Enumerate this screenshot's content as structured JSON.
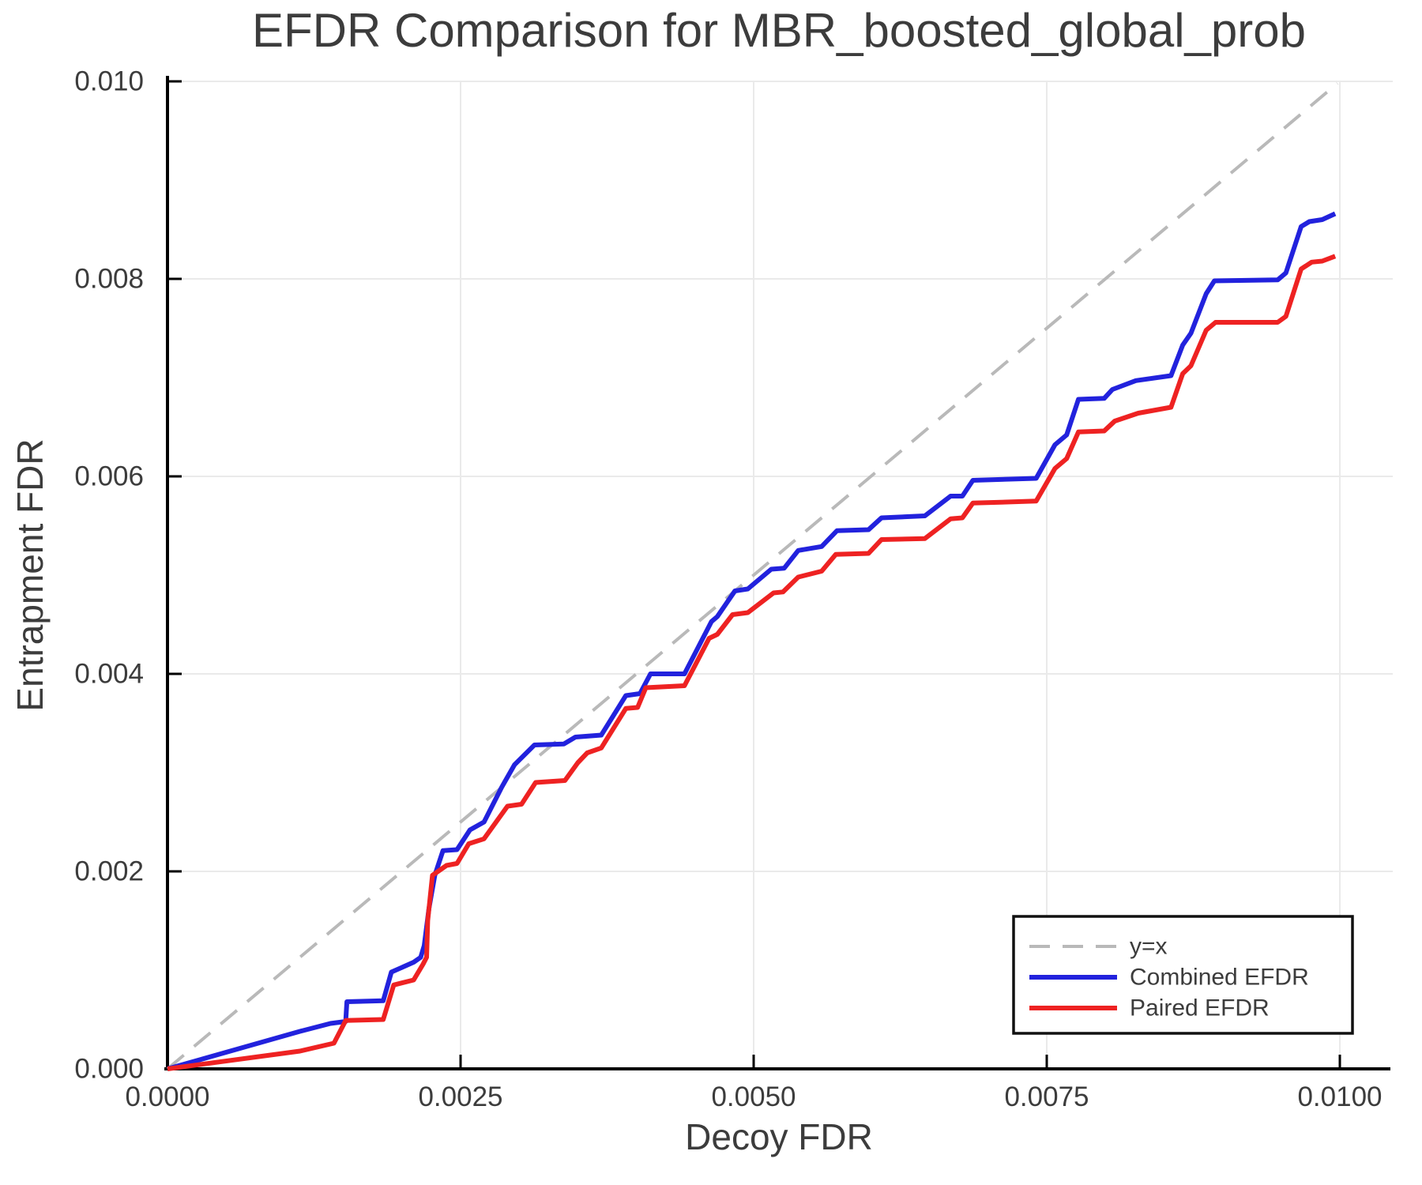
{
  "figure": {
    "title": "EFDR Comparison for MBR_boosted_global_prob",
    "xlabel": "Decoy FDR",
    "ylabel": "Entrapment FDR"
  },
  "colors": {
    "text": "#3c3c3c",
    "grid": "#eaeaea",
    "spine": "#000000",
    "legend_border": "#111111",
    "background": "#ffffff",
    "identity_line": "#b9b9b9",
    "combined_line": "#2222dd",
    "paired_line": "#ee2222"
  },
  "legend": {
    "position": "lower right"
  },
  "chart_data": {
    "type": "line",
    "title": "EFDR Comparison for MBR_boosted_global_prob",
    "xlabel": "Decoy FDR",
    "ylabel": "Entrapment FDR",
    "xlim": [
      0.0,
      0.01
    ],
    "ylim": [
      0.0,
      0.01
    ],
    "grid": true,
    "legend_position": "lower right",
    "x_ticks": {
      "values": [
        0.0,
        0.0025,
        0.005,
        0.0075,
        0.01
      ],
      "labels": [
        "0.0000",
        "0.0025",
        "0.0050",
        "0.0075",
        "0.0100"
      ]
    },
    "y_ticks": {
      "values": [
        0.0,
        0.002,
        0.004,
        0.006,
        0.008,
        0.01
      ],
      "labels": [
        "0.000",
        "0.002",
        "0.004",
        "0.006",
        "0.008",
        "0.010"
      ]
    },
    "series": [
      {
        "name": "y=x",
        "color": "#b9b9b9",
        "dashed": true,
        "width": 4,
        "points": [
          [
            0.0,
            0.0
          ],
          [
            0.00998,
            0.00998
          ]
        ]
      },
      {
        "name": "Combined EFDR",
        "color": "#2222dd",
        "dashed": false,
        "width": 6,
        "points": [
          [
            0.0,
            0.0
          ],
          [
            0.00113,
            0.00038
          ],
          [
            0.00139,
            0.00046
          ],
          [
            0.00152,
            0.00048
          ],
          [
            0.00153,
            0.00068
          ],
          [
            0.00184,
            0.00069
          ],
          [
            0.00191,
            0.00098
          ],
          [
            0.0021,
            0.00108
          ],
          [
            0.00216,
            0.00113
          ],
          [
            0.00219,
            0.00125
          ],
          [
            0.00223,
            0.00162
          ],
          [
            0.00228,
            0.00196
          ],
          [
            0.00235,
            0.00221
          ],
          [
            0.00247,
            0.00222
          ],
          [
            0.00258,
            0.00242
          ],
          [
            0.0027,
            0.0025
          ],
          [
            0.00285,
            0.00285
          ],
          [
            0.00296,
            0.00308
          ],
          [
            0.00313,
            0.00328
          ],
          [
            0.00338,
            0.00329
          ],
          [
            0.00348,
            0.00336
          ],
          [
            0.0037,
            0.00338
          ],
          [
            0.00391,
            0.00378
          ],
          [
            0.00403,
            0.0038
          ],
          [
            0.00412,
            0.004
          ],
          [
            0.00441,
            0.004
          ],
          [
            0.00464,
            0.00453
          ],
          [
            0.00469,
            0.00458
          ],
          [
            0.00484,
            0.00484
          ],
          [
            0.00495,
            0.00486
          ],
          [
            0.00515,
            0.00506
          ],
          [
            0.00526,
            0.00507
          ],
          [
            0.00538,
            0.00525
          ],
          [
            0.00558,
            0.00529
          ],
          [
            0.00571,
            0.00545
          ],
          [
            0.00598,
            0.00546
          ],
          [
            0.00609,
            0.00558
          ],
          [
            0.00646,
            0.0056
          ],
          [
            0.00668,
            0.0058
          ],
          [
            0.00678,
            0.0058
          ],
          [
            0.00687,
            0.00596
          ],
          [
            0.00741,
            0.00598
          ],
          [
            0.00757,
            0.00632
          ],
          [
            0.00767,
            0.00642
          ],
          [
            0.00777,
            0.00678
          ],
          [
            0.00799,
            0.00679
          ],
          [
            0.00806,
            0.00688
          ],
          [
            0.00826,
            0.00697
          ],
          [
            0.00856,
            0.00702
          ],
          [
            0.00866,
            0.00733
          ],
          [
            0.00873,
            0.00745
          ],
          [
            0.00886,
            0.00785
          ],
          [
            0.00893,
            0.00798
          ],
          [
            0.00947,
            0.00799
          ],
          [
            0.00954,
            0.00806
          ],
          [
            0.00967,
            0.00853
          ],
          [
            0.00974,
            0.00858
          ],
          [
            0.00985,
            0.0086
          ],
          [
            0.00996,
            0.00866
          ]
        ]
      },
      {
        "name": "Paired EFDR",
        "color": "#ee2222",
        "dashed": false,
        "width": 6,
        "points": [
          [
            0.0,
            0.0
          ],
          [
            0.00113,
            0.00018
          ],
          [
            0.00142,
            0.00026
          ],
          [
            0.00152,
            0.00049
          ],
          [
            0.00184,
            0.0005
          ],
          [
            0.00193,
            0.00085
          ],
          [
            0.0021,
            0.0009
          ],
          [
            0.00218,
            0.00106
          ],
          [
            0.00221,
            0.00113
          ],
          [
            0.00222,
            0.0015
          ],
          [
            0.00226,
            0.00196
          ],
          [
            0.00238,
            0.00206
          ],
          [
            0.00247,
            0.00208
          ],
          [
            0.00257,
            0.00228
          ],
          [
            0.0027,
            0.00233
          ],
          [
            0.0029,
            0.00266
          ],
          [
            0.00302,
            0.00268
          ],
          [
            0.00314,
            0.0029
          ],
          [
            0.00339,
            0.00292
          ],
          [
            0.0035,
            0.0031
          ],
          [
            0.00358,
            0.0032
          ],
          [
            0.0037,
            0.00325
          ],
          [
            0.00391,
            0.00365
          ],
          [
            0.00401,
            0.00366
          ],
          [
            0.00408,
            0.00386
          ],
          [
            0.00441,
            0.00388
          ],
          [
            0.00462,
            0.00436
          ],
          [
            0.00469,
            0.0044
          ],
          [
            0.00482,
            0.0046
          ],
          [
            0.00495,
            0.00462
          ],
          [
            0.00517,
            0.00482
          ],
          [
            0.00525,
            0.00483
          ],
          [
            0.00538,
            0.00498
          ],
          [
            0.00558,
            0.00504
          ],
          [
            0.0057,
            0.00521
          ],
          [
            0.00598,
            0.00522
          ],
          [
            0.00609,
            0.00536
          ],
          [
            0.00646,
            0.00537
          ],
          [
            0.00668,
            0.00557
          ],
          [
            0.00678,
            0.00558
          ],
          [
            0.00687,
            0.00573
          ],
          [
            0.00741,
            0.00575
          ],
          [
            0.00757,
            0.00608
          ],
          [
            0.00767,
            0.00618
          ],
          [
            0.00777,
            0.00645
          ],
          [
            0.00799,
            0.00646
          ],
          [
            0.00808,
            0.00656
          ],
          [
            0.00828,
            0.00664
          ],
          [
            0.00856,
            0.0067
          ],
          [
            0.00866,
            0.00704
          ],
          [
            0.00873,
            0.00712
          ],
          [
            0.00886,
            0.00748
          ],
          [
            0.00894,
            0.00756
          ],
          [
            0.00947,
            0.00756
          ],
          [
            0.00954,
            0.00762
          ],
          [
            0.00967,
            0.0081
          ],
          [
            0.00976,
            0.00817
          ],
          [
            0.00985,
            0.00818
          ],
          [
            0.00996,
            0.00823
          ]
        ]
      }
    ]
  }
}
